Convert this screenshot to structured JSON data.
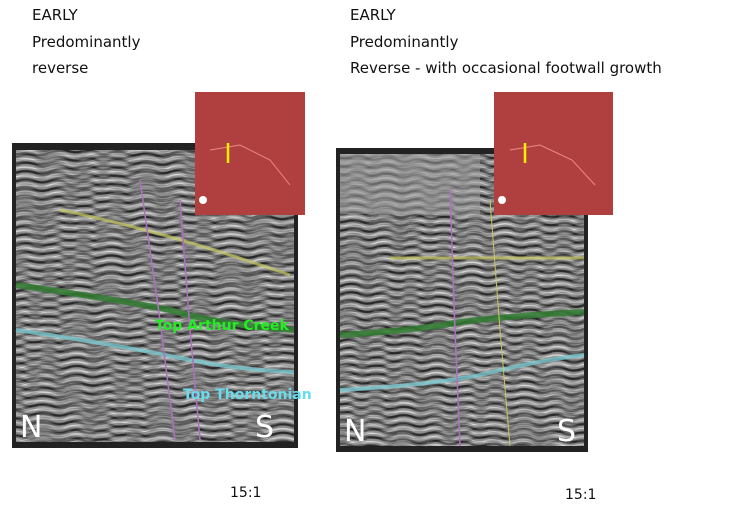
{
  "panels": [
    {
      "heading": [
        "EARLY",
        "Predominantly",
        "reverse"
      ],
      "horizons": [
        "Top Arthur Creek",
        "Top Thorntonian"
      ],
      "left_label": "N",
      "right_label": "S",
      "scale": "15:1"
    },
    {
      "heading": [
        "EARLY",
        "Predominantly",
        "Reverse - with occasional footwall growth"
      ],
      "left_label": "N",
      "right_label": "S",
      "scale": "15:1"
    }
  ]
}
